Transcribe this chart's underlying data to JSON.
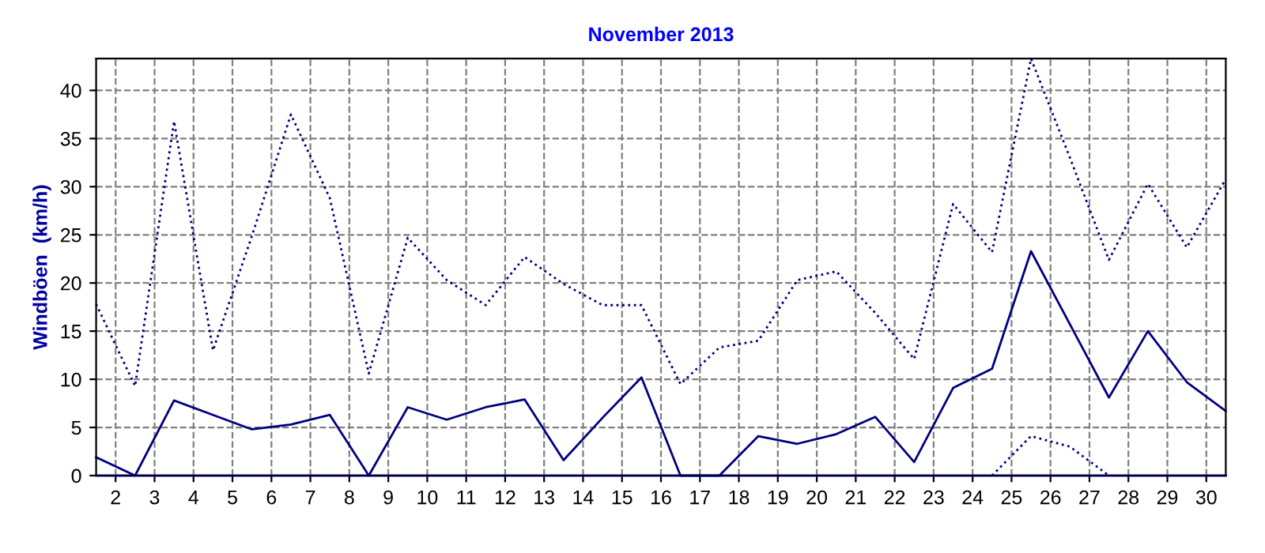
{
  "chart_data": {
    "type": "line",
    "title": "November 2013",
    "ylabel": "Windböen  (km/h)",
    "x": [
      1.5,
      2.5,
      3.5,
      4.5,
      5.5,
      6.5,
      7.5,
      8.5,
      9.5,
      10.5,
      11.5,
      12.5,
      13.5,
      14.5,
      15.5,
      16.5,
      17.5,
      18.5,
      19.5,
      20.5,
      21.5,
      22.5,
      23.5,
      24.5,
      25.5,
      26.5,
      27.5,
      28.5,
      29.5,
      30.5
    ],
    "series": [
      {
        "color": "#000080",
        "line_style": "dotted",
        "values": [
          17.8,
          9.3,
          36.8,
          13.0,
          24.9,
          37.5,
          28.8,
          10.6,
          24.7,
          20.3,
          17.7,
          22.7,
          19.9,
          17.7,
          17.7,
          9.5,
          13.3,
          14.0,
          20.3,
          21.2,
          16.9,
          12.1,
          28.2,
          23.2,
          43.3,
          33.0,
          22.4,
          30.3,
          23.7,
          30.8
        ]
      },
      {
        "color": "#000080",
        "line_style": "solid",
        "values": [
          1.9,
          0,
          7.8,
          6.3,
          4.8,
          5.3,
          6.3,
          0,
          7.1,
          5.8,
          7.1,
          7.9,
          1.6,
          6.0,
          10.2,
          0,
          0,
          4.1,
          3.3,
          4.3,
          6.1,
          1.4,
          9.1,
          11.1,
          23.3,
          15.7,
          8.1,
          15.0,
          9.7,
          6.7
        ]
      },
      {
        "color": "#000080",
        "line_style": "dotted",
        "values": [
          null,
          null,
          null,
          null,
          null,
          null,
          null,
          null,
          null,
          null,
          null,
          null,
          null,
          null,
          null,
          null,
          null,
          null,
          null,
          null,
          null,
          null,
          null,
          0,
          4.1,
          3.0,
          0,
          null,
          null,
          null
        ]
      },
      {
        "color": "#0000ff",
        "line_style": "solid",
        "values": [
          0,
          0,
          0,
          0,
          0,
          0,
          0,
          0,
          0,
          0,
          0,
          0,
          0,
          0,
          0,
          0,
          0,
          0,
          0,
          0,
          0,
          0,
          0,
          0,
          0,
          0,
          0,
          0,
          0,
          0
        ]
      }
    ],
    "xlim": [
      1.5,
      30.5
    ],
    "xticks": [
      2,
      3,
      4,
      5,
      6,
      7,
      8,
      9,
      10,
      11,
      12,
      13,
      14,
      15,
      16,
      17,
      18,
      19,
      20,
      21,
      22,
      23,
      24,
      25,
      26,
      27,
      28,
      29,
      30
    ],
    "ylim": [
      0,
      43.3
    ],
    "yticks": [
      0,
      5,
      10,
      15,
      20,
      25,
      30,
      35,
      40
    ],
    "grid": true
  }
}
